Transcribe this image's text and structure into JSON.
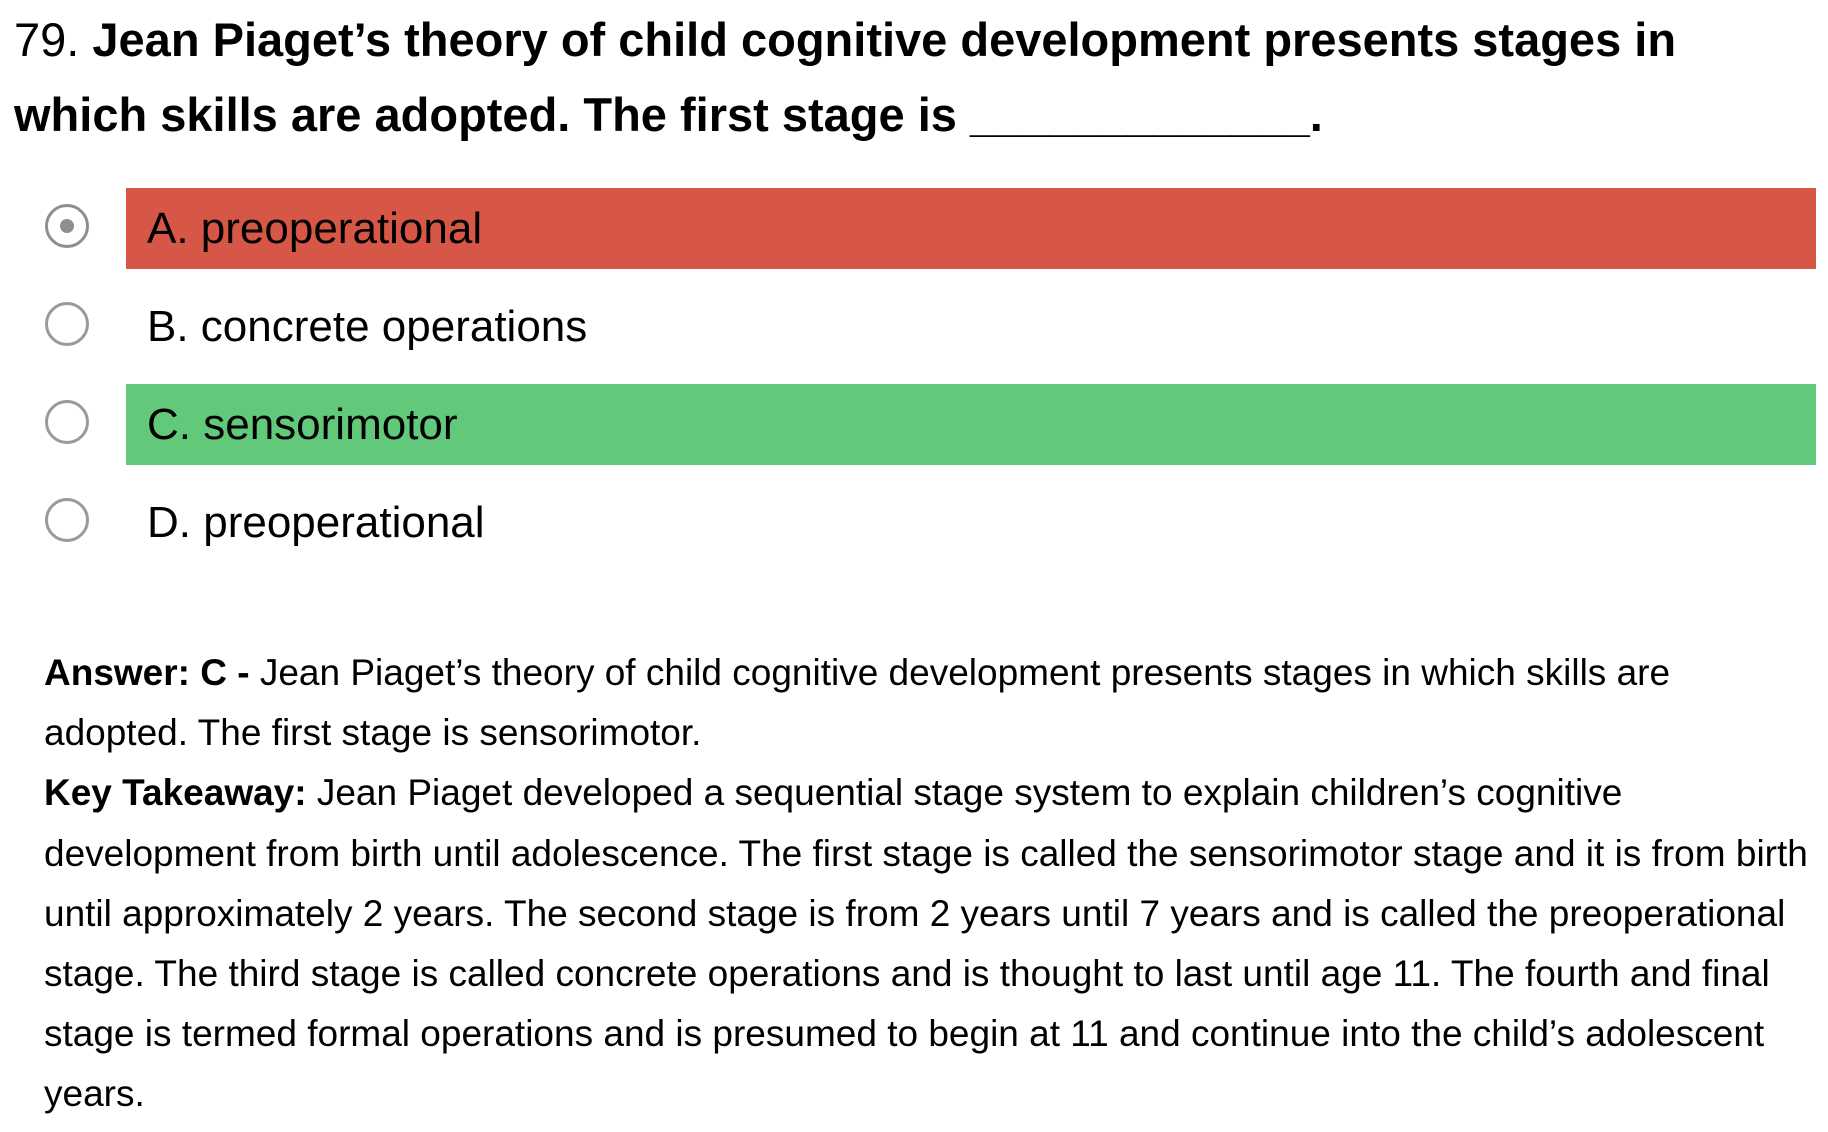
{
  "question": {
    "number": "79.",
    "text": "Jean Piaget’s theory of child cognitive development presents stages in which skills are adopted. The first stage is _____________."
  },
  "options": [
    {
      "label": "A. preoperational",
      "selected": true,
      "state": "incorrect"
    },
    {
      "label": "B. concrete operations",
      "selected": false,
      "state": "neutral"
    },
    {
      "label": "C. sensorimotor",
      "selected": false,
      "state": "correct"
    },
    {
      "label": "D. preoperational",
      "selected": false,
      "state": "neutral"
    }
  ],
  "colors": {
    "incorrect": "#d75746",
    "correct": "#62c87a"
  },
  "explanation": {
    "answer_label": "Answer: C -",
    "answer_text": "Jean Piaget’s theory of child cognitive development presents stages in which skills are adopted. The first stage is sensorimotor.",
    "takeaway_label": "Key Takeaway:",
    "takeaway_text": "Jean Piaget developed a sequential stage system to explain children’s cognitive development from birth until adolescence. The first stage is called the sensorimotor stage and it is from birth until approximately 2 years. The second stage is from 2 years until 7 years and is called the preoperational stage. The third stage is called concrete operations and is thought to last until age 11. The fourth and final stage is termed formal operations and is presumed to begin at 11 and continue into the child’s adolescent years."
  }
}
